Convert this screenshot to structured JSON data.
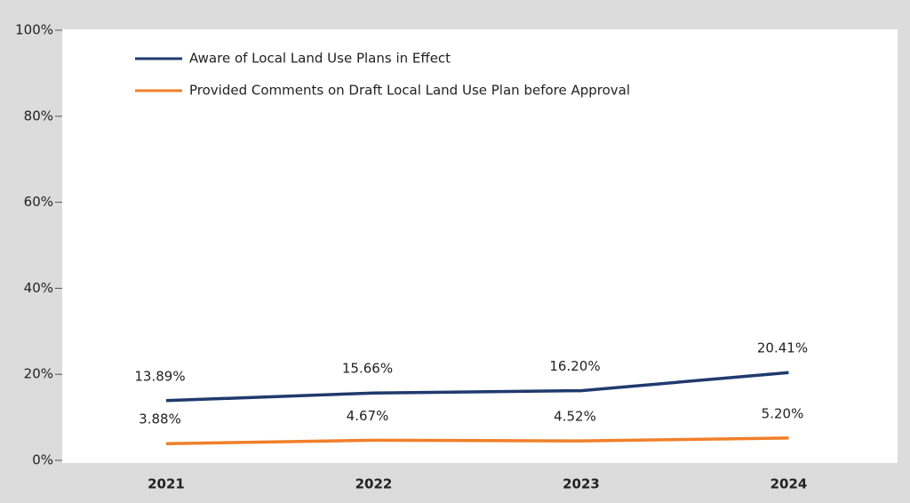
{
  "chart_data": {
    "type": "line",
    "categories": [
      "2021",
      "2022",
      "2023",
      "2024"
    ],
    "series": [
      {
        "name": "Aware of Local Land Use Plans in Effect",
        "color": "#1f3a6e",
        "values": [
          13.89,
          15.66,
          16.2,
          20.41
        ],
        "value_labels": [
          "13.89%",
          "15.66%",
          "16.20%",
          "20.41%"
        ]
      },
      {
        "name": "Provided Comments on Draft Local Land Use Plan before Approval",
        "color": "#f07f2a",
        "values": [
          3.88,
          4.67,
          4.52,
          5.2
        ],
        "value_labels": [
          "3.88%",
          "4.67%",
          "4.52%",
          "5.20%"
        ]
      }
    ],
    "ylim": [
      0,
      100
    ],
    "yticks": [
      {
        "value": 0,
        "label": "0%"
      },
      {
        "value": 20,
        "label": "20%"
      },
      {
        "value": 40,
        "label": "40%"
      },
      {
        "value": 60,
        "label": "60%"
      },
      {
        "value": 80,
        "label": "80%"
      },
      {
        "value": 100,
        "label": "100%"
      }
    ],
    "grid": false
  }
}
